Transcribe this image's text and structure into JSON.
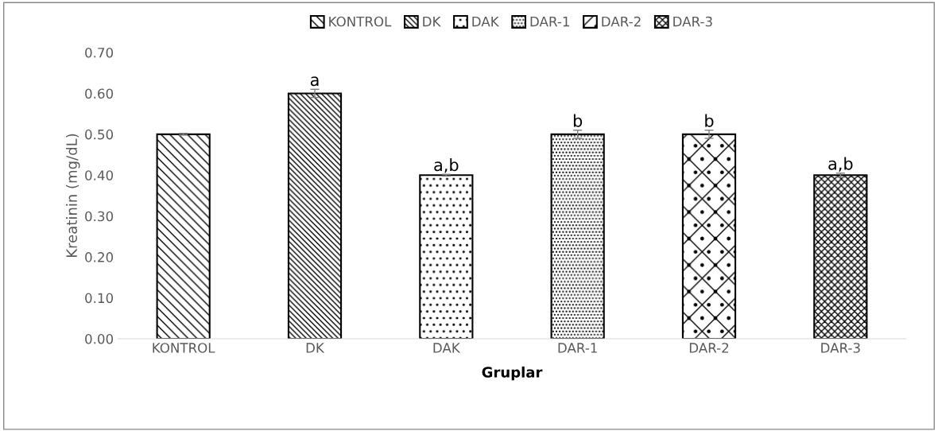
{
  "chart_data": {
    "type": "bar",
    "xlabel": "Gruplar",
    "ylabel": "Kreatinin (mg/dL)",
    "categories": [
      "KONTROL",
      "DK",
      "DAK",
      "DAR-1",
      "DAR-2",
      "DAR-3"
    ],
    "series": [
      {
        "name": "KONTROL",
        "color": "#000000",
        "values": [
          0.5,
          null,
          null,
          null,
          null,
          null
        ],
        "errors": [
          0.002,
          null,
          null,
          null,
          null,
          null
        ]
      },
      {
        "name": "DK",
        "color": "#000000",
        "values": [
          null,
          0.6,
          null,
          null,
          null,
          null
        ],
        "errors": [
          null,
          0.01,
          null,
          null,
          null,
          null
        ]
      },
      {
        "name": "DAK",
        "color": "#000000",
        "values": [
          null,
          null,
          0.4,
          null,
          null,
          null
        ],
        "errors": [
          null,
          null,
          0.002,
          null,
          null,
          null
        ]
      },
      {
        "name": "DAR-1",
        "color": "#000000",
        "values": [
          null,
          null,
          null,
          0.5,
          null,
          null
        ],
        "errors": [
          null,
          null,
          null,
          0.01,
          null,
          null
        ]
      },
      {
        "name": "DAR-2",
        "color": "#000000",
        "values": [
          null,
          null,
          null,
          null,
          0.5,
          null
        ],
        "errors": [
          null,
          null,
          null,
          null,
          0.01,
          null
        ]
      },
      {
        "name": "DAR-3",
        "color": "#000000",
        "values": [
          null,
          null,
          null,
          null,
          null,
          0.4
        ],
        "errors": [
          null,
          null,
          null,
          null,
          null,
          0.005
        ]
      }
    ],
    "annotations": [
      {
        "text": "a",
        "x": "DK",
        "y": 0.61
      },
      {
        "text": "a,b",
        "x": "DAK",
        "y": 0.402
      },
      {
        "text": "b",
        "x": "DAR-1",
        "y": 0.51
      },
      {
        "text": "b",
        "x": "DAR-2",
        "y": 0.51
      },
      {
        "text": "a,b",
        "x": "DAR-3",
        "y": 0.405
      }
    ],
    "ylim": [
      0,
      0.7
    ],
    "yticks": [
      {
        "value": 0,
        "label": "0.00"
      },
      {
        "value": 0.1,
        "label": "0.10"
      },
      {
        "value": 0.2,
        "label": "0.20"
      },
      {
        "value": 0.3,
        "label": "0.30"
      },
      {
        "value": 0.4,
        "label": "0.40"
      },
      {
        "value": 0.5,
        "label": "0.50"
      },
      {
        "value": 0.6,
        "label": "0.60"
      },
      {
        "value": 0.7,
        "label": "0.70"
      }
    ],
    "grid": false,
    "legend": "top"
  }
}
